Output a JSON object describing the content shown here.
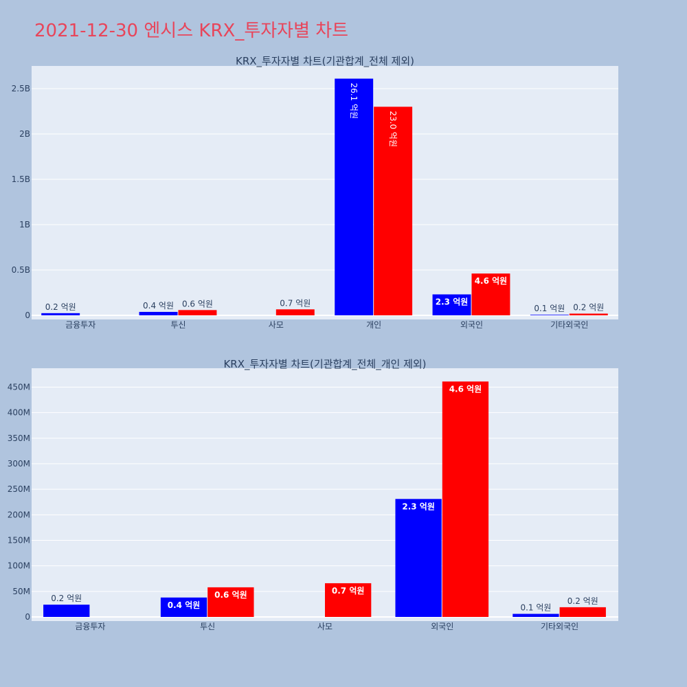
{
  "page_title": "2021-12-30 엔시스 KRX_투자자별 차트",
  "colors": {
    "buy": "#0000ff",
    "sell": "#ff0000",
    "plot_bg": "#e5ecf6",
    "page_bg": "#b0c4de",
    "title": "#e8455a"
  },
  "chart_data": [
    {
      "type": "bar",
      "title": "KRX_투자자별 차트(기관합계_전체 제외)",
      "categories": [
        "금융투자",
        "투신",
        "사모",
        "개인",
        "외국인",
        "기타외국인"
      ],
      "series": [
        {
          "values": [
            24000000,
            38000000,
            null,
            2610000000,
            231000000,
            6000000
          ],
          "labels": [
            "0.2 억원",
            "0.4 억원",
            "",
            "26.1 억원",
            "2.3 억원",
            "0.1 억원"
          ],
          "color": "#0000ff"
        },
        {
          "values": [
            null,
            58000000,
            66000000,
            2300000000,
            461000000,
            19000000
          ],
          "labels": [
            "",
            "0.6 억원",
            "0.7 억원",
            "23.0 억원",
            "4.6 억원",
            "0.2 억원"
          ],
          "color": "#ff0000"
        }
      ],
      "ylim": [
        0,
        2750000000
      ],
      "yticks": [
        0,
        500000000,
        1000000000,
        1500000000,
        2000000000,
        2500000000
      ],
      "ytick_labels": [
        "0",
        "0.5B",
        "1B",
        "1.5B",
        "2B",
        "2.5B"
      ],
      "grid": true
    },
    {
      "type": "bar",
      "title": "KRX_투자자별 차트(기관합계_전체_개인 제외)",
      "categories": [
        "금융투자",
        "투신",
        "사모",
        "외국인",
        "기타외국인"
      ],
      "series": [
        {
          "values": [
            24000000,
            38000000,
            null,
            231000000,
            6000000
          ],
          "labels": [
            "0.2 억원",
            "0.4 억원",
            "",
            "2.3 억원",
            "0.1 억원"
          ],
          "color": "#0000ff"
        },
        {
          "values": [
            null,
            58000000,
            66000000,
            461000000,
            19000000
          ],
          "labels": [
            "",
            "0.6 억원",
            "0.7 억원",
            "4.6 억원",
            "0.2 억원"
          ],
          "color": "#ff0000"
        }
      ],
      "ylim": [
        0,
        487000000
      ],
      "yticks": [
        0,
        50000000,
        100000000,
        150000000,
        200000000,
        250000000,
        300000000,
        350000000,
        400000000,
        450000000
      ],
      "ytick_labels": [
        "0",
        "50M",
        "100M",
        "150M",
        "200M",
        "250M",
        "300M",
        "350M",
        "400M",
        "450M"
      ],
      "grid": true
    }
  ]
}
